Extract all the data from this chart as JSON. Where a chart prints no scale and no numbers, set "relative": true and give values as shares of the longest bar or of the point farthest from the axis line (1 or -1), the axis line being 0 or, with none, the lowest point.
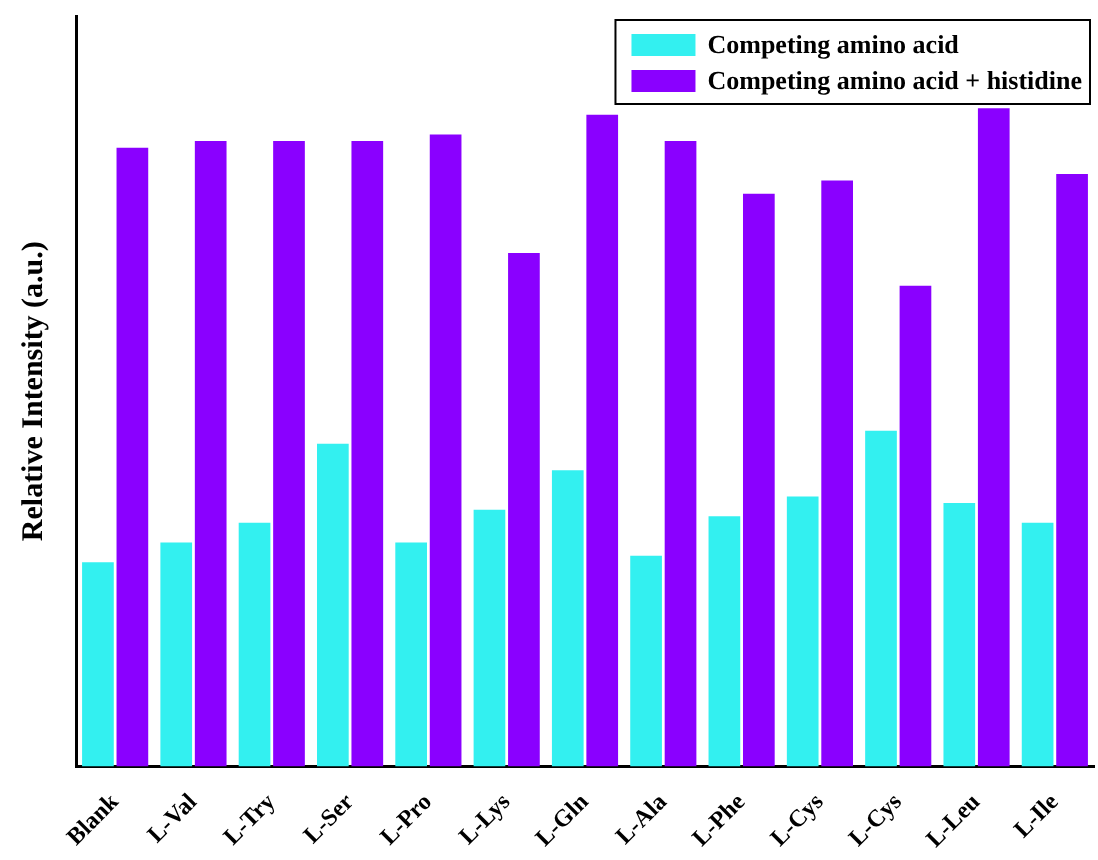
{
  "chart_data": {
    "type": "bar",
    "ylabel": "Relative Intensity (a.u.)",
    "relative": true,
    "legend": "top right",
    "grid": false,
    "categories": [
      "Blank",
      "L-Val",
      "L-Try",
      "L-Ser",
      "L-Pro",
      "L-Lys",
      "L-Gln",
      "L-Ala",
      "L-Phe",
      "L-Cys",
      "L-Cys",
      "L-Leu",
      "L-Ile"
    ],
    "series": [
      {
        "name": "Competing amino acid",
        "color": "#33f0f0",
        "values": [
          0.31,
          0.34,
          0.37,
          0.49,
          0.34,
          0.39,
          0.45,
          0.32,
          0.38,
          0.41,
          0.51,
          0.4,
          0.37
        ]
      },
      {
        "name": "Competing amino acid + histidine",
        "color": "#8a00ff",
        "values": [
          0.94,
          0.95,
          0.95,
          0.95,
          0.96,
          0.78,
          0.99,
          0.95,
          0.87,
          0.89,
          0.73,
          1,
          0.9
        ]
      }
    ]
  }
}
